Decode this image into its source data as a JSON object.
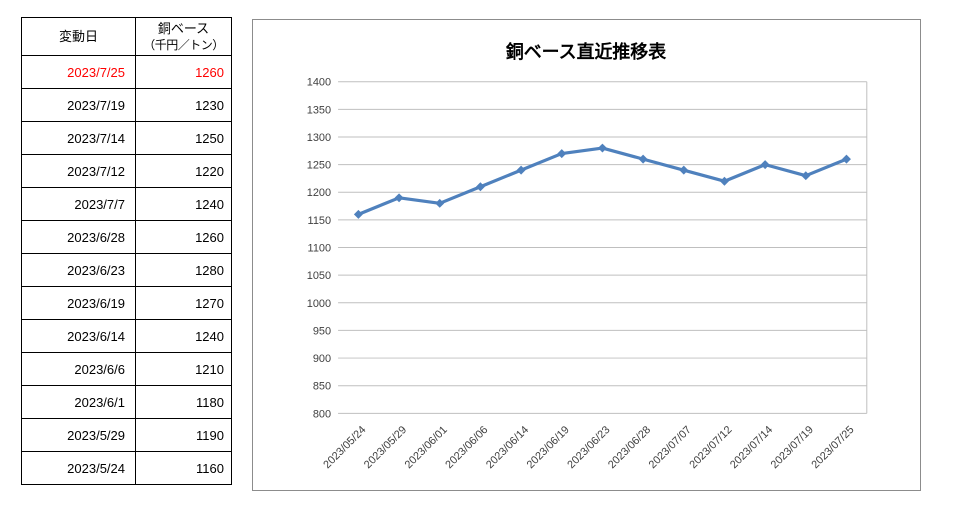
{
  "colors": {
    "highlight_text": "#ff0000",
    "series_line": "#4f81bd",
    "gridline": "#bfbfbf",
    "chart_border": "#8c8c8c",
    "axis_text": "#404040",
    "table_border": "#000000"
  },
  "table": {
    "col1_header": "変動日",
    "col2_header_line1": "銅ベース",
    "col2_header_line2": "（千円／トン）",
    "rows": [
      {
        "date": "2023/7/25",
        "value": "1260",
        "highlight": true
      },
      {
        "date": "2023/7/19",
        "value": "1230",
        "highlight": false
      },
      {
        "date": "2023/7/14",
        "value": "1250",
        "highlight": false
      },
      {
        "date": "2023/7/12",
        "value": "1220",
        "highlight": false
      },
      {
        "date": "2023/7/7",
        "value": "1240",
        "highlight": false
      },
      {
        "date": "2023/6/28",
        "value": "1260",
        "highlight": false
      },
      {
        "date": "2023/6/23",
        "value": "1280",
        "highlight": false
      },
      {
        "date": "2023/6/19",
        "value": "1270",
        "highlight": false
      },
      {
        "date": "2023/6/14",
        "value": "1240",
        "highlight": false
      },
      {
        "date": "2023/6/6",
        "value": "1210",
        "highlight": false
      },
      {
        "date": "2023/6/1",
        "value": "1180",
        "highlight": false
      },
      {
        "date": "2023/5/29",
        "value": "1190",
        "highlight": false
      },
      {
        "date": "2023/5/24",
        "value": "1160",
        "highlight": false
      }
    ]
  },
  "chart_data": {
    "type": "line",
    "title": "銅ベース直近推移表",
    "categories": [
      "2023/05/24",
      "2023/05/29",
      "2023/06/01",
      "2023/06/06",
      "2023/06/14",
      "2023/06/19",
      "2023/06/23",
      "2023/06/28",
      "2023/07/07",
      "2023/07/12",
      "2023/07/14",
      "2023/07/19",
      "2023/07/25"
    ],
    "values": [
      1160,
      1190,
      1180,
      1210,
      1240,
      1270,
      1280,
      1260,
      1240,
      1220,
      1250,
      1230,
      1260
    ],
    "xlabel": "",
    "ylabel": "",
    "ylim": [
      800,
      1400
    ],
    "ytick_step": 50,
    "grid": true,
    "legend_position": "none",
    "marker": "diamond"
  }
}
